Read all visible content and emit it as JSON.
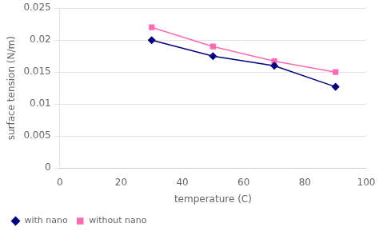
{
  "chart_data": {
    "type": "line",
    "x": [
      30,
      50,
      70,
      90
    ],
    "series": [
      {
        "name": "with nano",
        "color": "#000080",
        "marker": "diamond",
        "values": [
          0.02,
          0.0175,
          0.016,
          0.0127
        ]
      },
      {
        "name": "without nano",
        "color": "#FF69B4",
        "marker": "square",
        "values": [
          0.022,
          0.019,
          0.0167,
          0.015
        ]
      }
    ],
    "xlabel": "temperature (C)",
    "ylabel": "surface tension (N/m)",
    "xlim": [
      0,
      100
    ],
    "ylim": [
      0,
      0.025
    ],
    "xticks": [
      0,
      20,
      40,
      60,
      80,
      100
    ],
    "yticks": [
      0,
      0.005,
      0.01,
      0.015,
      0.02,
      0.025
    ],
    "grid": "y",
    "legend": "lower left"
  }
}
